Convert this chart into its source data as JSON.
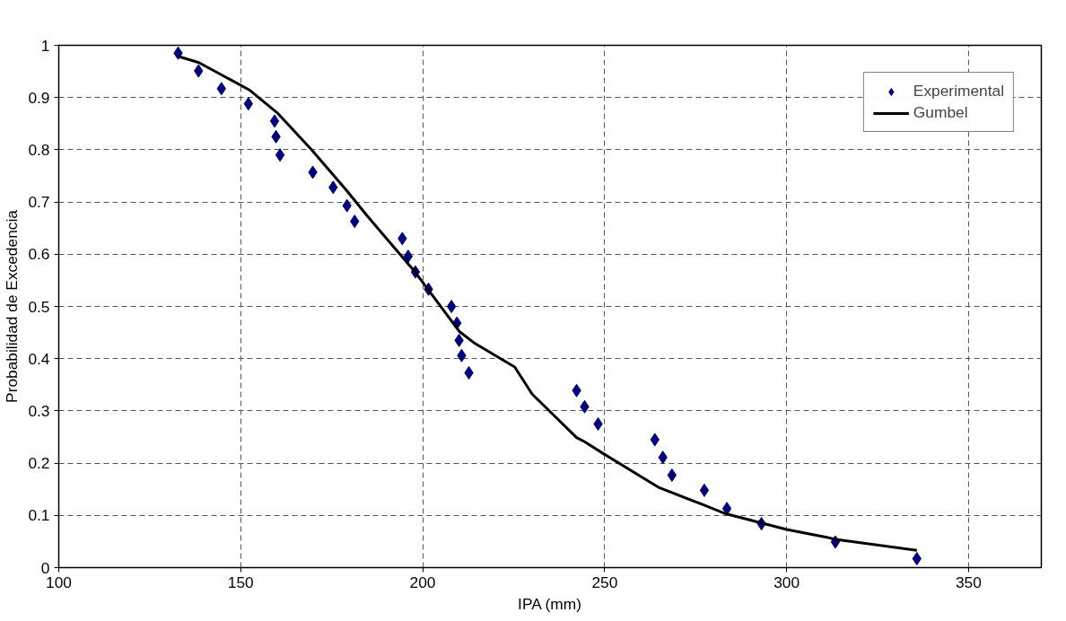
{
  "chart_data": {
    "type": "scatter",
    "xlabel": "IPA (mm)",
    "ylabel": "Probabilidad de Excedencia",
    "xlim": [
      100,
      370
    ],
    "ylim": [
      0,
      1
    ],
    "xticks": [
      100,
      150,
      200,
      250,
      300,
      350
    ],
    "yticks": [
      0,
      {
        "value": 0.1,
        "label": "0.1"
      },
      {
        "value": 0.2,
        "label": "0.2"
      },
      {
        "value": 0.3,
        "label": "0.3"
      },
      {
        "value": 0.4,
        "label": "0.4"
      },
      {
        "value": 0.5,
        "label": "0.5"
      },
      {
        "value": 0.6,
        "label": "0.6"
      },
      {
        "value": 0.7,
        "label": "0.7"
      },
      {
        "value": 0.8,
        "label": "0.8"
      },
      {
        "value": 0.9,
        "label": "0.9"
      },
      1
    ],
    "grid": true,
    "legend": "top right",
    "series": [
      {
        "name": "Experimental",
        "marker": "diamond",
        "color": "#000080",
        "x": [
          132.8,
          138.4,
          144.7,
          152.1,
          159.3,
          159.7,
          160.8,
          169.8,
          175.4,
          179.2,
          181.3,
          194.4,
          196.0,
          198.0,
          201.6,
          207.9,
          209.4,
          210.0,
          210.7,
          212.7,
          242.3,
          244.5,
          248.2,
          263.8,
          266.0,
          268.5,
          277.4,
          283.6,
          293.1,
          313.4,
          335.8
        ],
        "values": [
          0.985,
          0.951,
          0.917,
          0.888,
          0.855,
          0.825,
          0.79,
          0.757,
          0.728,
          0.693,
          0.663,
          0.63,
          0.596,
          0.566,
          0.533,
          0.5,
          0.468,
          0.435,
          0.406,
          0.373,
          0.339,
          0.308,
          0.275,
          0.245,
          0.211,
          0.177,
          0.148,
          0.113,
          0.084,
          0.049,
          0.017
        ]
      },
      {
        "name": "Gumbel",
        "type": "line",
        "marker": "none",
        "line_style": "solid",
        "color": "#000000",
        "x": [
          132.8,
          138.5,
          144.3,
          152.5,
          160,
          169.5,
          179.1,
          184.8,
          197.9,
          210.1,
          214.4,
          225.3,
          230.1,
          242.3,
          244.5,
          249.7,
          265.0,
          277.2,
          283.3,
          300,
          310.4,
          313.4,
          335.8
        ],
        "values": [
          0.979,
          0.967,
          0.945,
          0.914,
          0.871,
          0.8,
          0.722,
          0.673,
          0.566,
          0.452,
          0.429,
          0.384,
          0.332,
          0.249,
          0.241,
          0.218,
          0.153,
          0.12,
          0.103,
          0.073,
          0.059,
          0.054,
          0.033
        ]
      }
    ]
  }
}
